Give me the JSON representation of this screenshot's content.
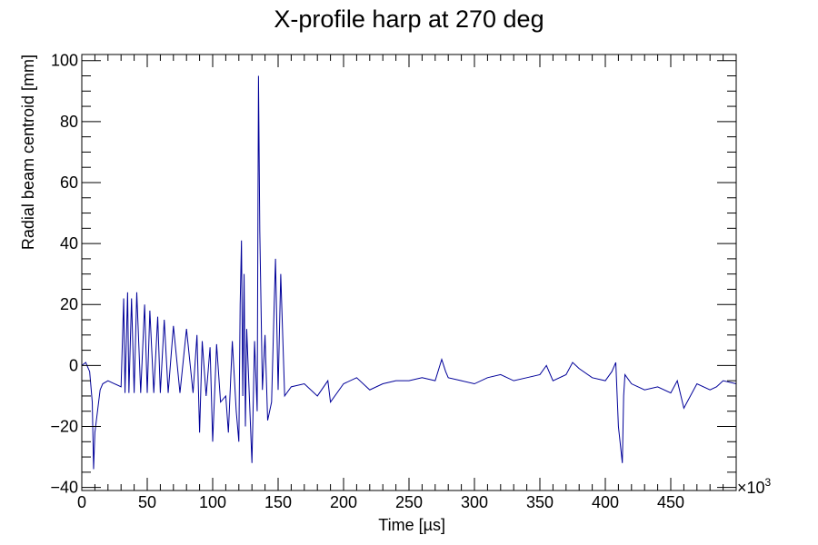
{
  "chart_data": {
    "type": "line",
    "title": "X-profile harp at 270 deg",
    "xlabel": "Time [µs]",
    "ylabel": "Radial beam centroid [mm]",
    "x_multiplier_label": "×10",
    "x_multiplier_exp": "3",
    "xlim": [
      0,
      500
    ],
    "ylim": [
      -41,
      102
    ],
    "x_ticks": [
      0,
      50,
      100,
      150,
      200,
      250,
      300,
      350,
      400,
      450
    ],
    "x_tick_labels": [
      "0",
      "50",
      "100",
      "150",
      "200",
      "250",
      "300",
      "350",
      "400",
      "450"
    ],
    "y_ticks": [
      -40,
      -20,
      0,
      20,
      40,
      60,
      80,
      100
    ],
    "y_tick_labels": [
      "−40",
      "−20",
      "0",
      "20",
      "40",
      "60",
      "80",
      "100"
    ],
    "grid": false,
    "legend": "none",
    "series": [
      {
        "color": "#000099",
        "x": [
          0,
          3,
          6,
          8,
          9,
          10,
          12,
          14,
          16,
          20,
          25,
          30,
          32,
          33,
          35,
          36,
          38,
          40,
          42,
          45,
          48,
          50,
          52,
          55,
          58,
          60,
          63,
          66,
          70,
          75,
          80,
          85,
          88,
          90,
          92,
          95,
          98,
          100,
          103,
          106,
          110,
          112,
          115,
          118,
          120,
          121,
          122,
          123,
          124,
          125,
          126,
          128,
          130,
          132,
          134,
          135,
          136,
          138,
          140,
          142,
          145,
          147,
          148,
          150,
          152,
          155,
          160,
          170,
          180,
          188,
          190,
          200,
          210,
          220,
          230,
          240,
          250,
          260,
          270,
          275,
          278,
          280,
          290,
          300,
          310,
          320,
          330,
          340,
          350,
          355,
          360,
          370,
          375,
          380,
          390,
          400,
          405,
          408,
          410,
          412,
          413,
          414,
          415,
          420,
          430,
          440,
          450,
          455,
          460,
          470,
          480,
          485,
          490,
          500
        ],
        "y": [
          0,
          1,
          -2,
          -12,
          -34,
          -22,
          -15,
          -8,
          -6,
          -5,
          -6,
          -7,
          22,
          -9,
          24,
          -9,
          22,
          -9,
          24,
          -9,
          20,
          -9,
          18,
          -9,
          16,
          -9,
          15,
          -9,
          13,
          -9,
          12,
          -9,
          10,
          -22,
          8,
          -10,
          6,
          -25,
          7,
          -12,
          -10,
          -22,
          8,
          -15,
          -25,
          20,
          41,
          -10,
          30,
          -20,
          12,
          -10,
          -32,
          8,
          -15,
          95,
          44,
          -8,
          10,
          -18,
          -12,
          20,
          35,
          -8,
          30,
          -10,
          -7,
          -6,
          -10,
          -5,
          -12,
          -6,
          -4,
          -8,
          -6,
          -5,
          -5,
          -4,
          -5,
          2,
          -2,
          -4,
          -5,
          -6,
          -4,
          -3,
          -5,
          -4,
          -3,
          0,
          -5,
          -3,
          1,
          -1,
          -4,
          -5,
          -2,
          1,
          -20,
          -28,
          -32,
          -10,
          -3,
          -6,
          -8,
          -7,
          -9,
          -5,
          -14,
          -6,
          -8,
          -7,
          -5,
          -6
        ]
      }
    ]
  }
}
